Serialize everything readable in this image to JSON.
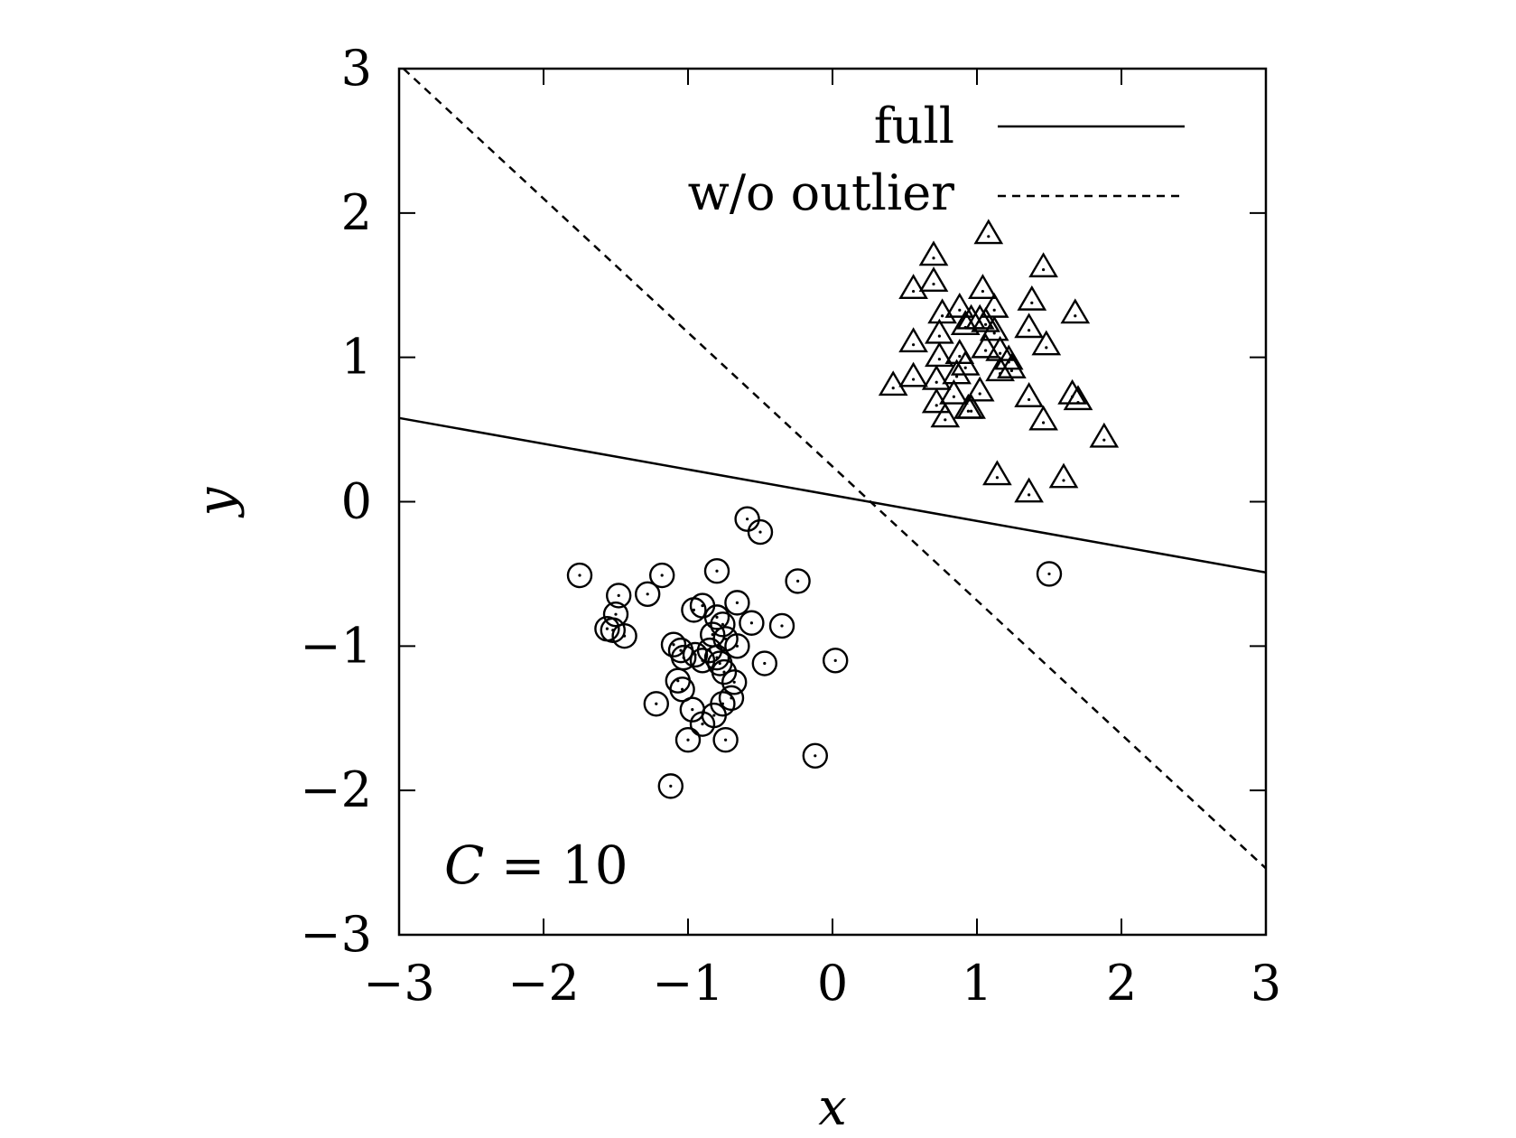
{
  "chart_data": {
    "type": "scatter",
    "xlabel": "x",
    "ylabel": "y",
    "xlim": [
      -3,
      3
    ],
    "ylim": [
      -3,
      3
    ],
    "xticks": [
      -3,
      -2,
      -1,
      0,
      1,
      2,
      3
    ],
    "yticks": [
      -3,
      -2,
      -1,
      0,
      1,
      2,
      3
    ],
    "xtick_labels": [
      "−3",
      "−2",
      "−1",
      "0",
      "1",
      "2",
      "3"
    ],
    "ytick_labels": [
      "−3",
      "−2",
      "−1",
      "0",
      "1",
      "2",
      "3"
    ],
    "grid": false,
    "legend_position": "top-right",
    "annotation": {
      "var": "C",
      "eq": " = 10"
    },
    "lines": [
      {
        "name": "full",
        "style": "solid",
        "points": [
          [
            -3,
            0.58
          ],
          [
            3,
            -0.49
          ]
        ]
      },
      {
        "name": "w/o outlier",
        "style": "dashed",
        "points": [
          [
            -2.97,
            3.0
          ],
          [
            3,
            -2.54
          ]
        ]
      }
    ],
    "series": [
      {
        "marker": "circle",
        "points": [
          [
            -0.59,
            -0.12
          ],
          [
            -0.5,
            -0.21
          ],
          [
            -1.75,
            -0.51
          ],
          [
            -1.18,
            -0.51
          ],
          [
            -0.8,
            -0.48
          ],
          [
            -1.28,
            -0.64
          ],
          [
            -0.24,
            -0.55
          ],
          [
            -1.48,
            -0.65
          ],
          [
            -1.5,
            -0.78
          ],
          [
            -0.66,
            -0.7
          ],
          [
            -0.9,
            -0.72
          ],
          [
            -0.96,
            -0.75
          ],
          [
            -0.8,
            -0.8
          ],
          [
            -0.76,
            -0.85
          ],
          [
            -0.56,
            -0.84
          ],
          [
            -0.35,
            -0.86
          ],
          [
            -1.56,
            -0.88
          ],
          [
            -1.52,
            -0.89
          ],
          [
            -1.44,
            -0.93
          ],
          [
            -0.83,
            -0.92
          ],
          [
            -0.74,
            -0.95
          ],
          [
            -0.66,
            -1.0
          ],
          [
            -1.1,
            -0.99
          ],
          [
            -1.05,
            -1.03
          ],
          [
            -0.95,
            -1.06
          ],
          [
            -0.85,
            -1.03
          ],
          [
            -0.8,
            -1.08
          ],
          [
            -0.78,
            -1.12
          ],
          [
            -0.9,
            -1.1
          ],
          [
            -1.03,
            -1.08
          ],
          [
            -0.47,
            -1.12
          ],
          [
            0.02,
            -1.1
          ],
          [
            -0.75,
            -1.18
          ],
          [
            -0.68,
            -1.25
          ],
          [
            -1.07,
            -1.24
          ],
          [
            -1.04,
            -1.3
          ],
          [
            -0.7,
            -1.36
          ],
          [
            -0.76,
            -1.4
          ],
          [
            -1.22,
            -1.4
          ],
          [
            -0.97,
            -1.44
          ],
          [
            -0.82,
            -1.48
          ],
          [
            -0.9,
            -1.54
          ],
          [
            -1.0,
            -1.65
          ],
          [
            -0.74,
            -1.65
          ],
          [
            -0.12,
            -1.76
          ],
          [
            -1.12,
            -1.97
          ],
          [
            1.5,
            -0.5
          ]
        ]
      },
      {
        "marker": "triangle",
        "points": [
          [
            1.08,
            1.85
          ],
          [
            0.7,
            1.7
          ],
          [
            1.46,
            1.62
          ],
          [
            0.7,
            1.52
          ],
          [
            0.56,
            1.47
          ],
          [
            1.04,
            1.47
          ],
          [
            1.38,
            1.39
          ],
          [
            0.88,
            1.34
          ],
          [
            1.12,
            1.34
          ],
          [
            0.76,
            1.3
          ],
          [
            1.68,
            1.3
          ],
          [
            0.96,
            1.26
          ],
          [
            1.02,
            1.26
          ],
          [
            1.06,
            1.24
          ],
          [
            0.92,
            1.22
          ],
          [
            1.36,
            1.2
          ],
          [
            1.12,
            1.18
          ],
          [
            0.74,
            1.16
          ],
          [
            0.56,
            1.1
          ],
          [
            1.48,
            1.08
          ],
          [
            1.06,
            1.06
          ],
          [
            1.16,
            1.04
          ],
          [
            0.88,
            1.02
          ],
          [
            0.74,
            1.0
          ],
          [
            1.22,
            0.98
          ],
          [
            0.92,
            0.94
          ],
          [
            1.24,
            0.92
          ],
          [
            1.16,
            0.9
          ],
          [
            0.86,
            0.88
          ],
          [
            0.56,
            0.86
          ],
          [
            0.72,
            0.84
          ],
          [
            0.42,
            0.8
          ],
          [
            1.02,
            0.76
          ],
          [
            0.84,
            0.74
          ],
          [
            1.36,
            0.72
          ],
          [
            1.66,
            0.74
          ],
          [
            1.7,
            0.7
          ],
          [
            0.72,
            0.68
          ],
          [
            0.94,
            0.64
          ],
          [
            0.96,
            0.64
          ],
          [
            0.78,
            0.58
          ],
          [
            1.46,
            0.56
          ],
          [
            1.88,
            0.44
          ],
          [
            1.14,
            0.18
          ],
          [
            1.6,
            0.16
          ],
          [
            1.36,
            0.06
          ]
        ]
      }
    ]
  }
}
